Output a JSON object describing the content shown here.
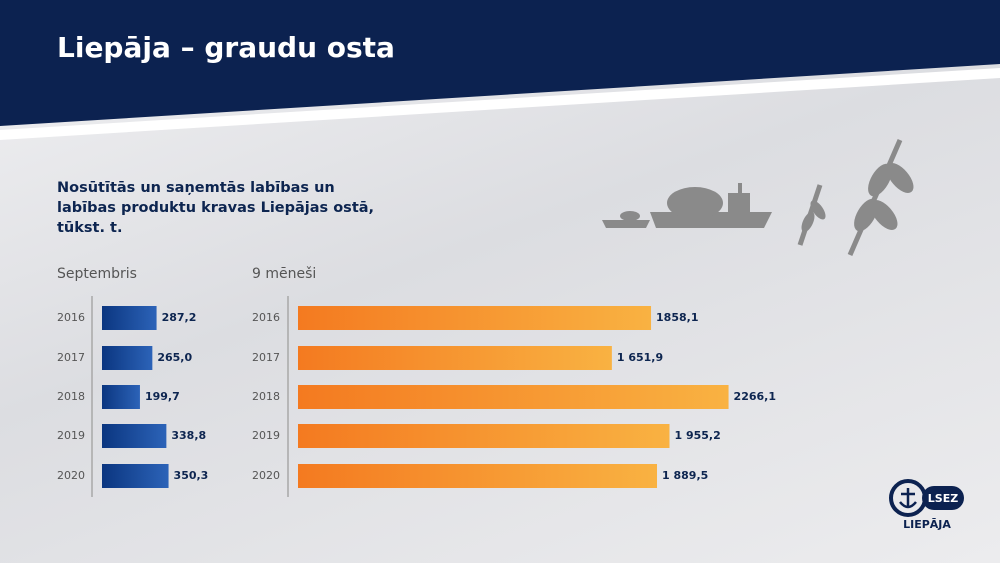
{
  "title": "Liepāja – graudu osta",
  "subtitle": "Nosūtītās un saņemtās labības un labības produktu kravas Liepājas ostā, tūkst. t.",
  "chart_data": [
    {
      "type": "bar",
      "title": "Septembris",
      "categories": [
        "2016",
        "2017",
        "2018",
        "2019",
        "2020"
      ],
      "values": [
        287.2,
        265.0,
        199.7,
        338.8,
        350.3
      ],
      "value_labels": [
        "287,2",
        "265,0",
        "199,7",
        "338,8",
        "350,3"
      ],
      "color": [
        "#0b3680",
        "#2c63b8"
      ]
    },
    {
      "type": "bar",
      "title": "9 mēneši",
      "categories": [
        "2016",
        "2017",
        "2018",
        "2019",
        "2020"
      ],
      "values": [
        1858.1,
        1651.9,
        2266.1,
        1955.2,
        1889.5
      ],
      "value_labels": [
        "1858,1",
        "1 651,9",
        "2266,1",
        "1 955,2",
        "1 889,5"
      ],
      "color": [
        "#f47a20",
        "#f9b242"
      ]
    }
  ],
  "logo": {
    "badge": "LSEZ",
    "name": "LIEPĀJA"
  }
}
